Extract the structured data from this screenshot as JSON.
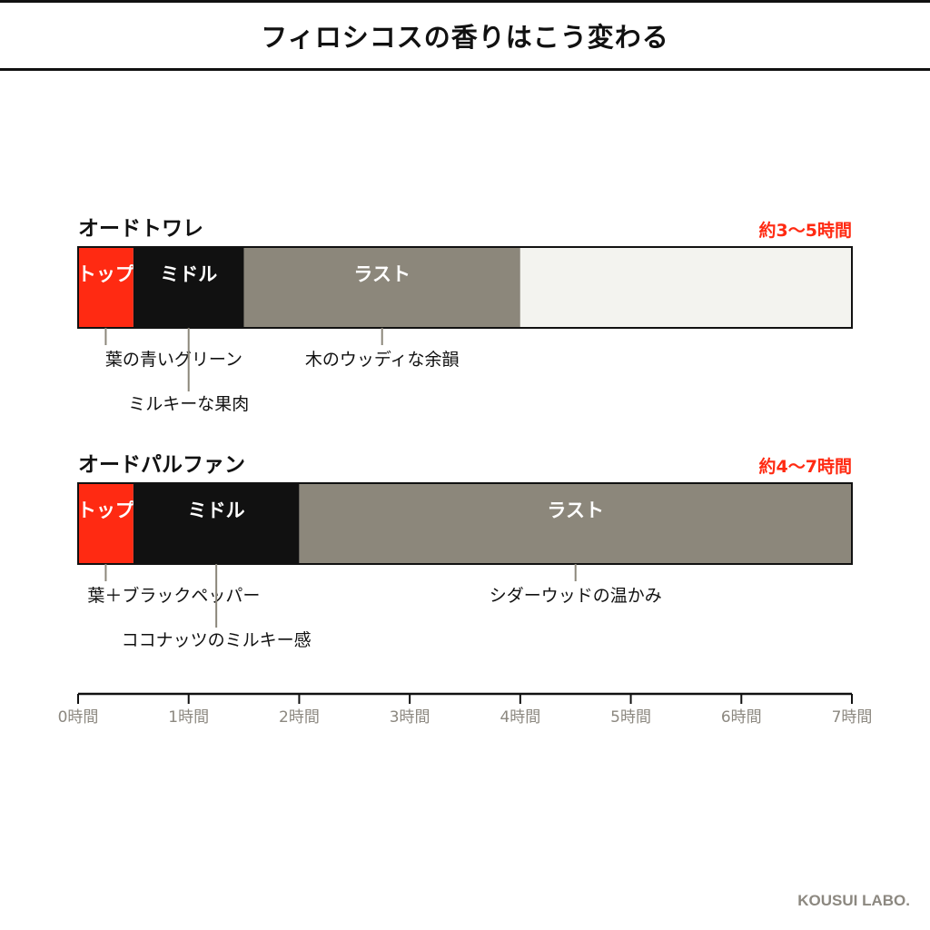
{
  "title": "フィロシコスの香りはこう変わる",
  "brand": "KOUSUI LABO.",
  "colors": {
    "top": "#ff2a12",
    "middle": "#111111",
    "last": "#8c877b",
    "remaining": "#f3f3ef",
    "accent": "#ff2a12",
    "axis": "#111111",
    "axis_label": "#8c8880"
  },
  "chart_data": {
    "type": "bar",
    "orientation": "horizontal-stacked",
    "xunit": "時間",
    "xlim": [
      0,
      7
    ],
    "x_ticks": [
      0,
      1,
      2,
      3,
      4,
      5,
      6,
      7
    ],
    "tick_labels": [
      "0時間",
      "1時間",
      "2時間",
      "3時間",
      "4時間",
      "5時間",
      "6時間",
      "7時間"
    ],
    "series": [
      {
        "name": "オードトワレ",
        "duration": "約3〜5時間",
        "segments": [
          {
            "label": "トップ",
            "kind": "top",
            "start": 0,
            "end": 0.5
          },
          {
            "label": "ミドル",
            "kind": "middle",
            "start": 0.5,
            "end": 1.5
          },
          {
            "label": "ラスト",
            "kind": "last",
            "start": 1.5,
            "end": 4
          },
          {
            "label": "",
            "kind": "remaining",
            "start": 4,
            "end": 7
          }
        ],
        "annotations": [
          {
            "text": "葉の青いグリーン",
            "x": 0.25,
            "level": 1
          },
          {
            "text": "ミルキーな果肉",
            "x": 1.0,
            "level": 2
          },
          {
            "text": "木のウッディな余韻",
            "x": 2.75,
            "level": 1
          }
        ]
      },
      {
        "name": "オードパルファン",
        "duration": "約4〜7時間",
        "segments": [
          {
            "label": "トップ",
            "kind": "top",
            "start": 0,
            "end": 0.5
          },
          {
            "label": "ミドル",
            "kind": "middle",
            "start": 0.5,
            "end": 2
          },
          {
            "label": "ラスト",
            "kind": "last",
            "start": 2,
            "end": 7
          }
        ],
        "annotations": [
          {
            "text": "葉＋ブラックペッパー",
            "x": 0.25,
            "level": 1
          },
          {
            "text": "ココナッツのミルキー感",
            "x": 1.25,
            "level": 2
          },
          {
            "text": "シダーウッドの温かみ",
            "x": 4.5,
            "level": 1
          }
        ]
      }
    ]
  }
}
